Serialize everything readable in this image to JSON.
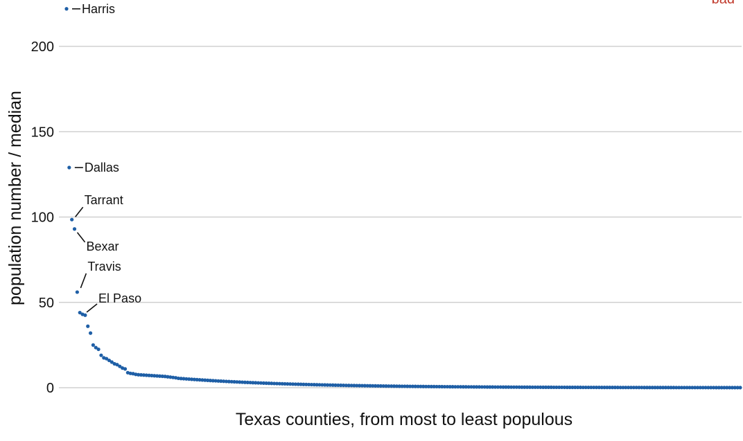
{
  "chart_data": {
    "type": "scatter",
    "title": "",
    "xlabel": "Texas counties, from most to least populous",
    "ylabel": "population number / median",
    "ylim": [
      0,
      220
    ],
    "yticks": [
      0,
      50,
      100,
      150,
      200
    ],
    "ytick_labels": [
      "0",
      "50",
      "100",
      "150",
      "200"
    ],
    "grid": "horizontal",
    "n_points": 254,
    "head_values": [
      222,
      129,
      98.5,
      93,
      56,
      44,
      43,
      42.5,
      36,
      32,
      25,
      23.5,
      22.5,
      19,
      17.5,
      17,
      16,
      15,
      14,
      13.5,
      12.5,
      11.5,
      11,
      8.8,
      8.4,
      8.2,
      7.8,
      7.6,
      7.5,
      7.4,
      7.3,
      7.2,
      7.1,
      7.0,
      6.9,
      6.8,
      6.7,
      6.6,
      6.4,
      6.2,
      6.0,
      5.8
    ],
    "tail_start": 5.5,
    "tail_end": 0.05,
    "labeled_points": [
      {
        "name": "Harris",
        "rank": 1,
        "value": 222
      },
      {
        "name": "Dallas",
        "rank": 2,
        "value": 129
      },
      {
        "name": "Tarrant",
        "rank": 3,
        "value": 98.5
      },
      {
        "name": "Bexar",
        "rank": 4,
        "value": 93
      },
      {
        "name": "Travis",
        "rank": 5,
        "value": 56
      },
      {
        "name": "El Paso",
        "rank": 7,
        "value": 43
      }
    ],
    "colors": {
      "points": "#1f5fa6",
      "grid": "#d0d0d0"
    }
  },
  "badge_text": "bad"
}
